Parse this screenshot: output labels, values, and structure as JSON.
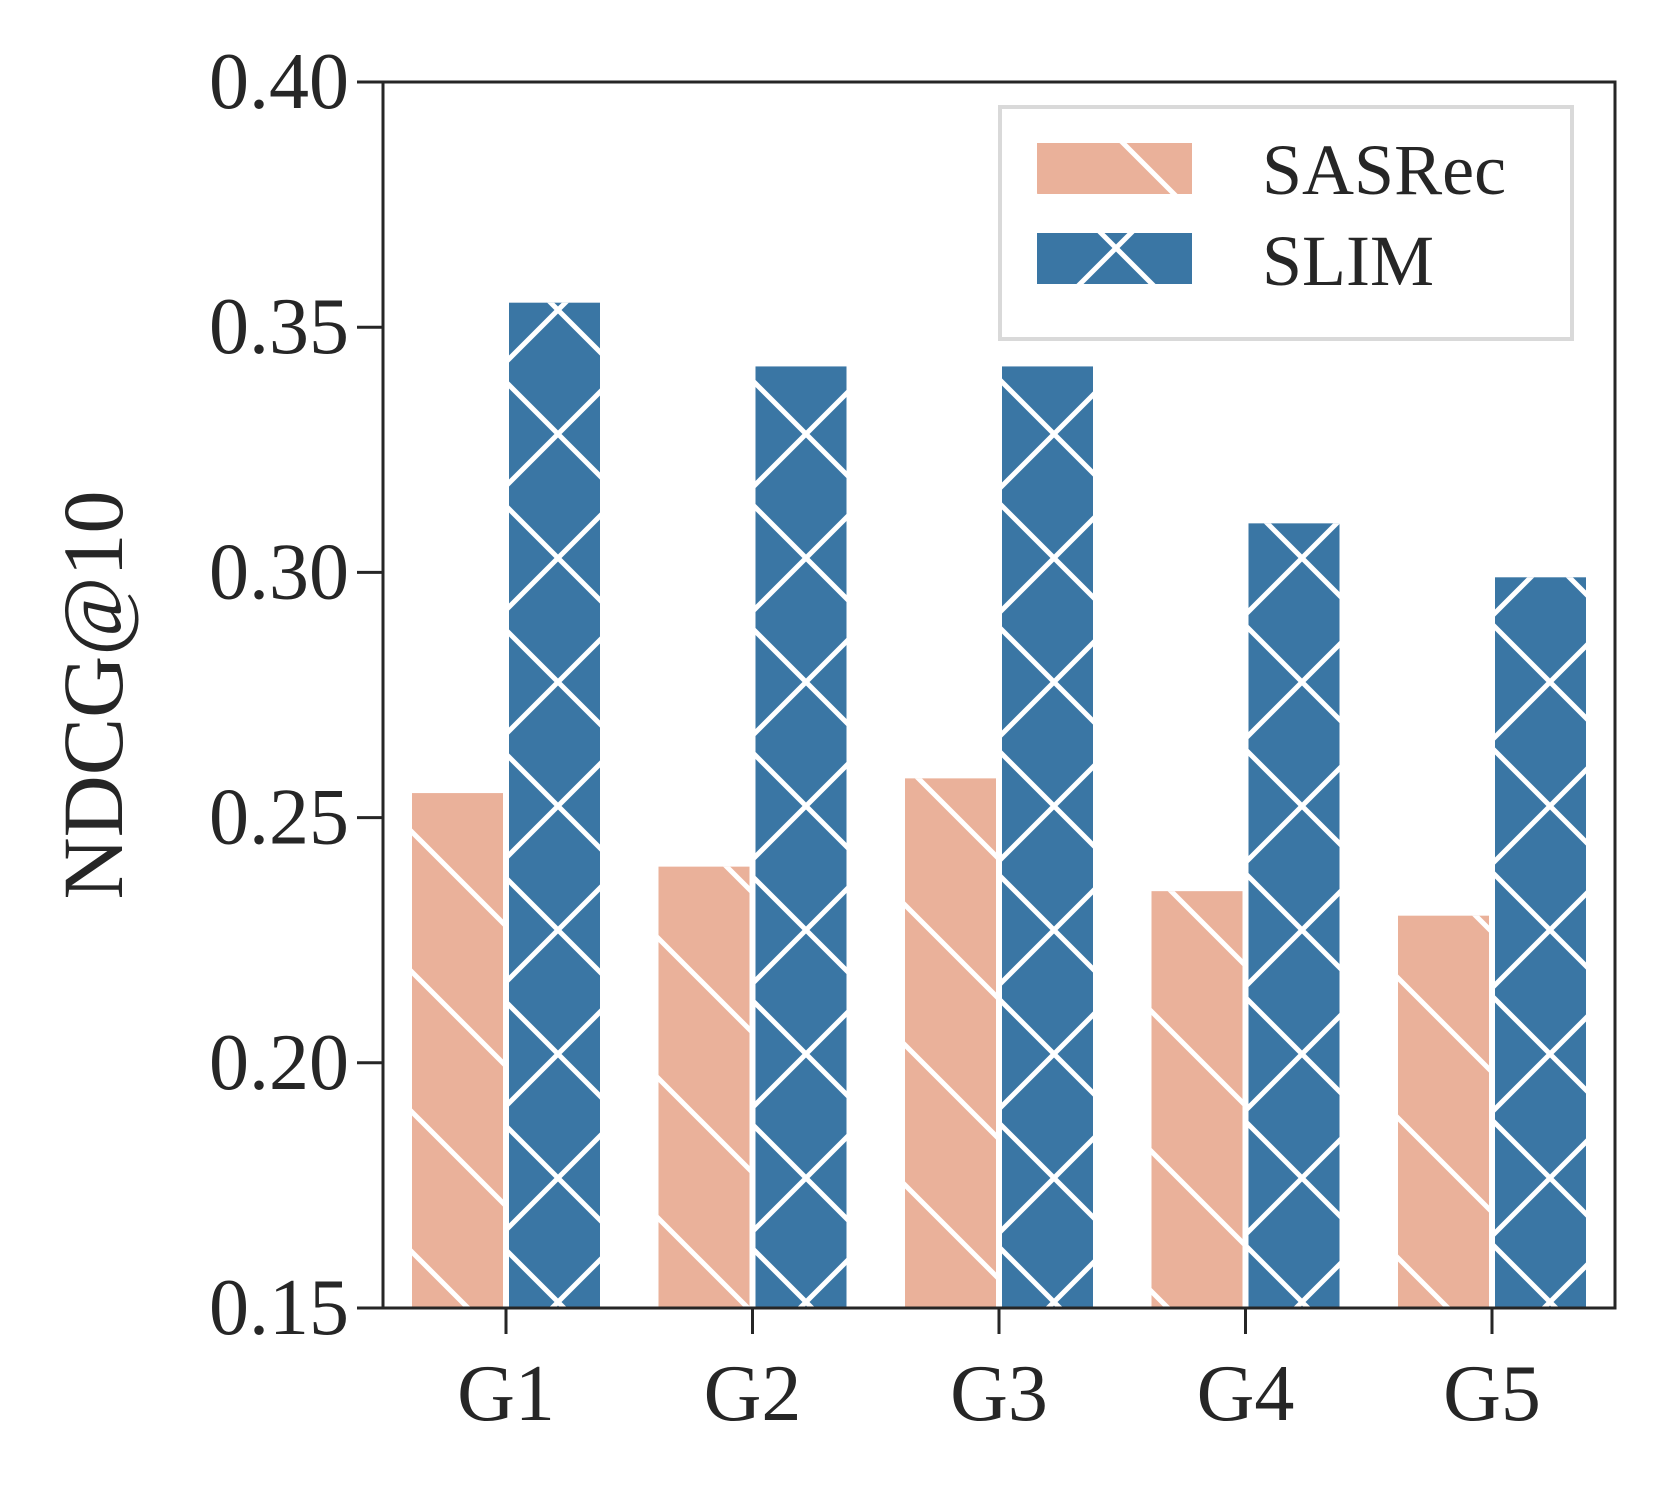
{
  "chart_data": {
    "type": "bar",
    "title": "",
    "xlabel": "",
    "ylabel": "NDCG@10",
    "categories": [
      "G1",
      "G2",
      "G3",
      "G4",
      "G5"
    ],
    "ylim": [
      0.15,
      0.4
    ],
    "yticks": [
      0.15,
      0.2,
      0.25,
      0.3,
      0.35,
      0.4
    ],
    "ytick_labels": [
      "0.15",
      "0.20",
      "0.25",
      "0.30",
      "0.35",
      "0.40"
    ],
    "grid": false,
    "legend_position": "top-right",
    "series": [
      {
        "name": "SASRec",
        "values": [
          0.255,
          0.24,
          0.258,
          0.235,
          0.23
        ],
        "color": "#eab19a",
        "hatch": "diagonal"
      },
      {
        "name": "SLIM",
        "values": [
          0.355,
          0.342,
          0.342,
          0.31,
          0.299
        ],
        "color": "#3a76a4",
        "hatch": "cross"
      }
    ]
  }
}
